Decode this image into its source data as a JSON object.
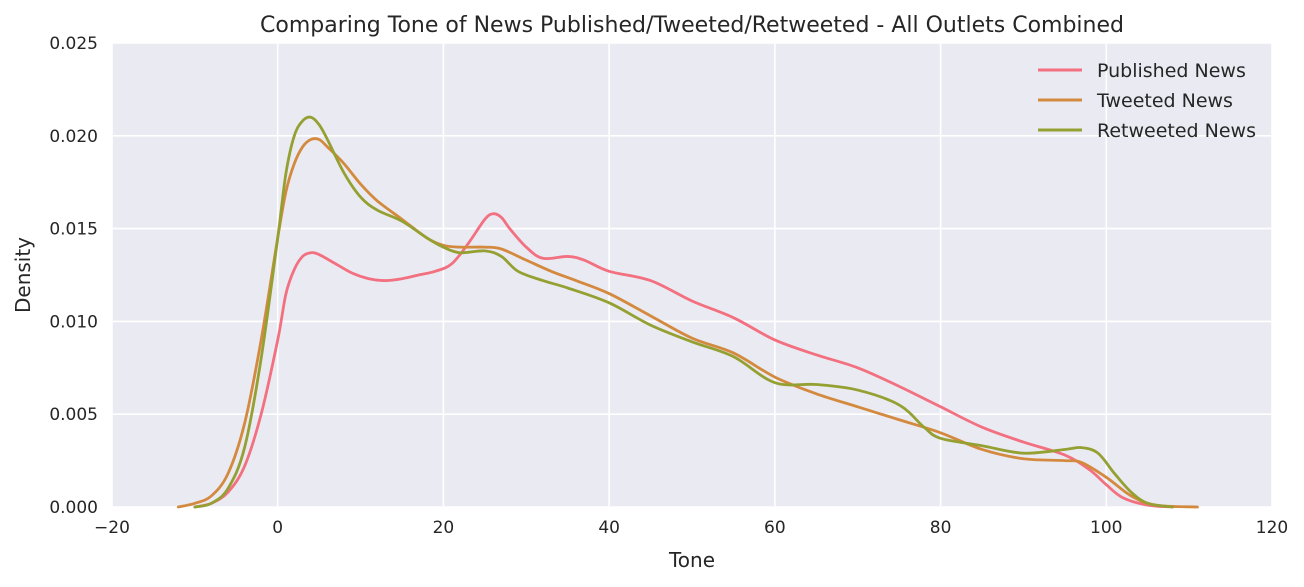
{
  "chart_data": {
    "type": "line",
    "title": "Comparing Tone of News Published/Tweeted/Retweeted - All Outlets Combined",
    "xlabel": "Tone",
    "ylabel": "Density",
    "xlim": [
      -20,
      120
    ],
    "ylim": [
      0,
      0.025
    ],
    "xticks": [
      "−20",
      "0",
      "20",
      "40",
      "60",
      "80",
      "100",
      "120"
    ],
    "yticks": [
      "0.000",
      "0.005",
      "0.010",
      "0.015",
      "0.020",
      "0.025"
    ],
    "grid": true,
    "legend_position": "top-right",
    "background": "#eaeaf2",
    "series": [
      {
        "name": "Published News",
        "color": "#f2707f",
        "points": [
          [
            -10,
            0.0
          ],
          [
            -8,
            0.0002
          ],
          [
            -6,
            0.0008
          ],
          [
            -4,
            0.0022
          ],
          [
            -2,
            0.005
          ],
          [
            0,
            0.009
          ],
          [
            1,
            0.0115
          ],
          [
            2,
            0.0128
          ],
          [
            3,
            0.0135
          ],
          [
            4,
            0.0137
          ],
          [
            5,
            0.0136
          ],
          [
            7,
            0.0131
          ],
          [
            9,
            0.0126
          ],
          [
            11,
            0.0123
          ],
          [
            13,
            0.0122
          ],
          [
            15,
            0.0123
          ],
          [
            17,
            0.0125
          ],
          [
            19,
            0.0127
          ],
          [
            21,
            0.0131
          ],
          [
            23,
            0.0142
          ],
          [
            25,
            0.0155
          ],
          [
            26,
            0.0158
          ],
          [
            27,
            0.0156
          ],
          [
            28,
            0.015
          ],
          [
            30,
            0.014
          ],
          [
            32,
            0.0134
          ],
          [
            35,
            0.0135
          ],
          [
            37,
            0.0133
          ],
          [
            40,
            0.0127
          ],
          [
            45,
            0.0122
          ],
          [
            50,
            0.0111
          ],
          [
            55,
            0.0102
          ],
          [
            60,
            0.009
          ],
          [
            65,
            0.0082
          ],
          [
            70,
            0.0075
          ],
          [
            75,
            0.0065
          ],
          [
            80,
            0.0054
          ],
          [
            85,
            0.0043
          ],
          [
            90,
            0.0035
          ],
          [
            95,
            0.0028
          ],
          [
            98,
            0.002
          ],
          [
            100,
            0.0012
          ],
          [
            102,
            0.0005
          ],
          [
            105,
            0.0001
          ],
          [
            108,
            0.0
          ]
        ]
      },
      {
        "name": "Tweeted News",
        "color": "#d38a3e",
        "points": [
          [
            -12,
            0.0
          ],
          [
            -10,
            0.0002
          ],
          [
            -8,
            0.0006
          ],
          [
            -6,
            0.0018
          ],
          [
            -4,
            0.0045
          ],
          [
            -2,
            0.009
          ],
          [
            0,
            0.0145
          ],
          [
            1,
            0.017
          ],
          [
            2,
            0.0185
          ],
          [
            3,
            0.0194
          ],
          [
            4,
            0.0198
          ],
          [
            5,
            0.0198
          ],
          [
            6,
            0.0194
          ],
          [
            8,
            0.0185
          ],
          [
            10,
            0.0174
          ],
          [
            12,
            0.0165
          ],
          [
            15,
            0.0155
          ],
          [
            18,
            0.0145
          ],
          [
            20,
            0.0141
          ],
          [
            22,
            0.014
          ],
          [
            25,
            0.014
          ],
          [
            27,
            0.0139
          ],
          [
            30,
            0.0133
          ],
          [
            33,
            0.0127
          ],
          [
            36,
            0.0122
          ],
          [
            40,
            0.0115
          ],
          [
            45,
            0.0103
          ],
          [
            50,
            0.0091
          ],
          [
            55,
            0.0083
          ],
          [
            60,
            0.007
          ],
          [
            65,
            0.0061
          ],
          [
            70,
            0.0054
          ],
          [
            75,
            0.0047
          ],
          [
            80,
            0.004
          ],
          [
            85,
            0.0031
          ],
          [
            90,
            0.0026
          ],
          [
            95,
            0.0025
          ],
          [
            97,
            0.0024
          ],
          [
            100,
            0.0016
          ],
          [
            103,
            0.0006
          ],
          [
            106,
            0.0001
          ],
          [
            111,
            0.0
          ]
        ]
      },
      {
        "name": "Retweeted News",
        "color": "#95a032",
        "points": [
          [
            -10,
            0.0
          ],
          [
            -8,
            0.0002
          ],
          [
            -6,
            0.001
          ],
          [
            -4,
            0.0032
          ],
          [
            -2,
            0.008
          ],
          [
            0,
            0.0145
          ],
          [
            1,
            0.018
          ],
          [
            2,
            0.02
          ],
          [
            3,
            0.0208
          ],
          [
            4,
            0.021
          ],
          [
            5,
            0.0206
          ],
          [
            6,
            0.0198
          ],
          [
            8,
            0.018
          ],
          [
            10,
            0.0167
          ],
          [
            12,
            0.016
          ],
          [
            15,
            0.0154
          ],
          [
            18,
            0.0145
          ],
          [
            20,
            0.014
          ],
          [
            22,
            0.0137
          ],
          [
            25,
            0.0138
          ],
          [
            27,
            0.0135
          ],
          [
            29,
            0.0127
          ],
          [
            32,
            0.0122
          ],
          [
            35,
            0.0118
          ],
          [
            40,
            0.011
          ],
          [
            45,
            0.0098
          ],
          [
            50,
            0.0089
          ],
          [
            55,
            0.0081
          ],
          [
            60,
            0.0067
          ],
          [
            65,
            0.0066
          ],
          [
            70,
            0.0063
          ],
          [
            75,
            0.0055
          ],
          [
            78,
            0.0043
          ],
          [
            80,
            0.0037
          ],
          [
            85,
            0.0033
          ],
          [
            90,
            0.0029
          ],
          [
            95,
            0.0031
          ],
          [
            97,
            0.0032
          ],
          [
            99,
            0.0029
          ],
          [
            101,
            0.0018
          ],
          [
            103,
            0.0008
          ],
          [
            105,
            0.0002
          ],
          [
            108,
            0.0
          ]
        ]
      }
    ]
  }
}
